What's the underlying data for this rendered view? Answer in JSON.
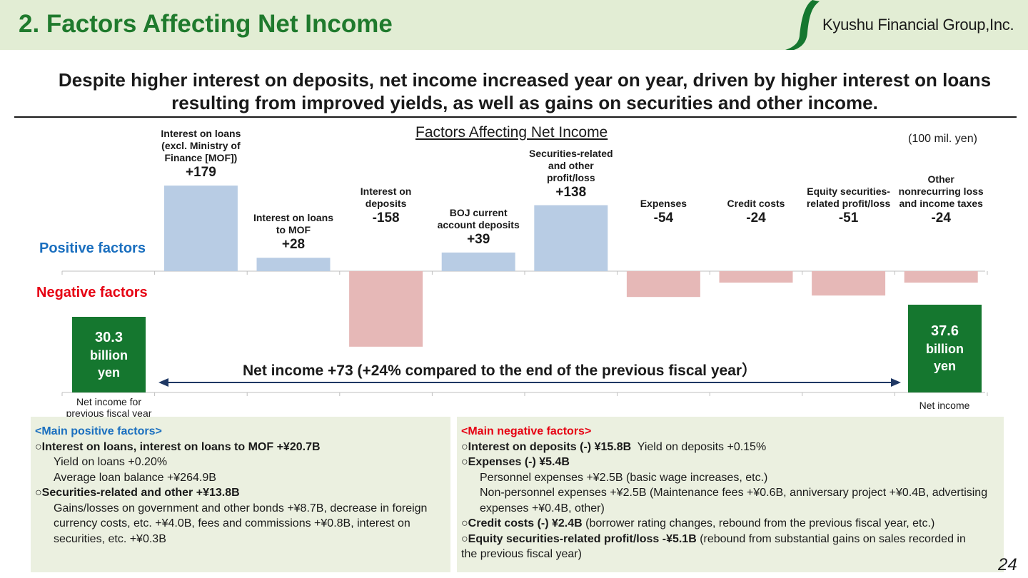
{
  "header": {
    "title": "2. Factors Affecting Net Income",
    "logo_text": "Kyushu Financial Group,Inc."
  },
  "headline": "Despite higher interest on deposits, net income increased year on year, driven by higher interest on loans resulting from improved yields, as well as gains on securities and other income.",
  "chart_data": {
    "type": "bar",
    "title": "Factors Affecting Net Income",
    "unit": "(100 mil. yen)",
    "positive_label": "Positive factors",
    "negative_label": "Negative factors",
    "start": {
      "label": "Net income for previous fiscal year",
      "box_value": "30.3",
      "box_unit": "billion yen"
    },
    "end": {
      "label": "Net income",
      "box_value": "37.6",
      "box_unit": "billion yen"
    },
    "categories": [
      "Interest on loans (excl. Ministry of Finance [MOF])",
      "Interest on loans to MOF",
      "Interest on deposits",
      "BOJ current account deposits",
      "Securities-related and other profit/loss",
      "Expenses",
      "Credit costs",
      "Equity securities-related profit/loss",
      "Other nonrecurring loss and income taxes"
    ],
    "values": [
      179,
      28,
      -158,
      39,
      138,
      -54,
      -24,
      -51,
      -24
    ],
    "value_labels": [
      "+179",
      "+28",
      "-158",
      "+39",
      "+138",
      "-54",
      "-24",
      "-51",
      "-24"
    ],
    "net_change": "Net income  +73 (+24% compared to the end of the previous fiscal year）",
    "colors": {
      "positive": "#b8cce4",
      "negative": "#e6b8b7",
      "endpoint": "#15772f"
    }
  },
  "panels": {
    "positive": {
      "heading": "<Main positive factors>",
      "l1": "○Interest on loans, interest on loans to MOF +¥20.7B",
      "l2": "Yield on loans +0.20%",
      "l3": "Average loan balance +¥264.9B",
      "l4": "○Securities-related and other +¥13.8B",
      "l5": "Gains/losses on government and other bonds +¥8.7B, decrease in foreign currency costs, etc. +¥4.0B, fees and commissions +¥0.8B, interest on securities, etc. +¥0.3B"
    },
    "negative": {
      "heading": "<Main negative factors>",
      "l1_bold": "○Interest on deposits (-) ¥15.8B",
      "l1_rest": "  Yield on deposits +0.15%",
      "l2_bold": "○Expenses (-) ¥5.4B",
      "l3": "Personnel expenses +¥2.5B (basic wage increases, etc.)",
      "l4": "Non-personnel expenses +¥2.5B (Maintenance fees +¥0.6B, anniversary project +¥0.4B, advertising expenses +¥0.4B, other)",
      "l5_bold": "○Credit costs (-) ¥2.4B",
      "l5_rest": " (borrower rating changes, rebound from the previous fiscal year, etc.)",
      "l6_bold": "○Equity securities-related profit/loss -¥5.1B",
      "l6_rest": " (rebound from substantial gains on sales recorded in the previous fiscal year)"
    }
  },
  "page_number": "24"
}
